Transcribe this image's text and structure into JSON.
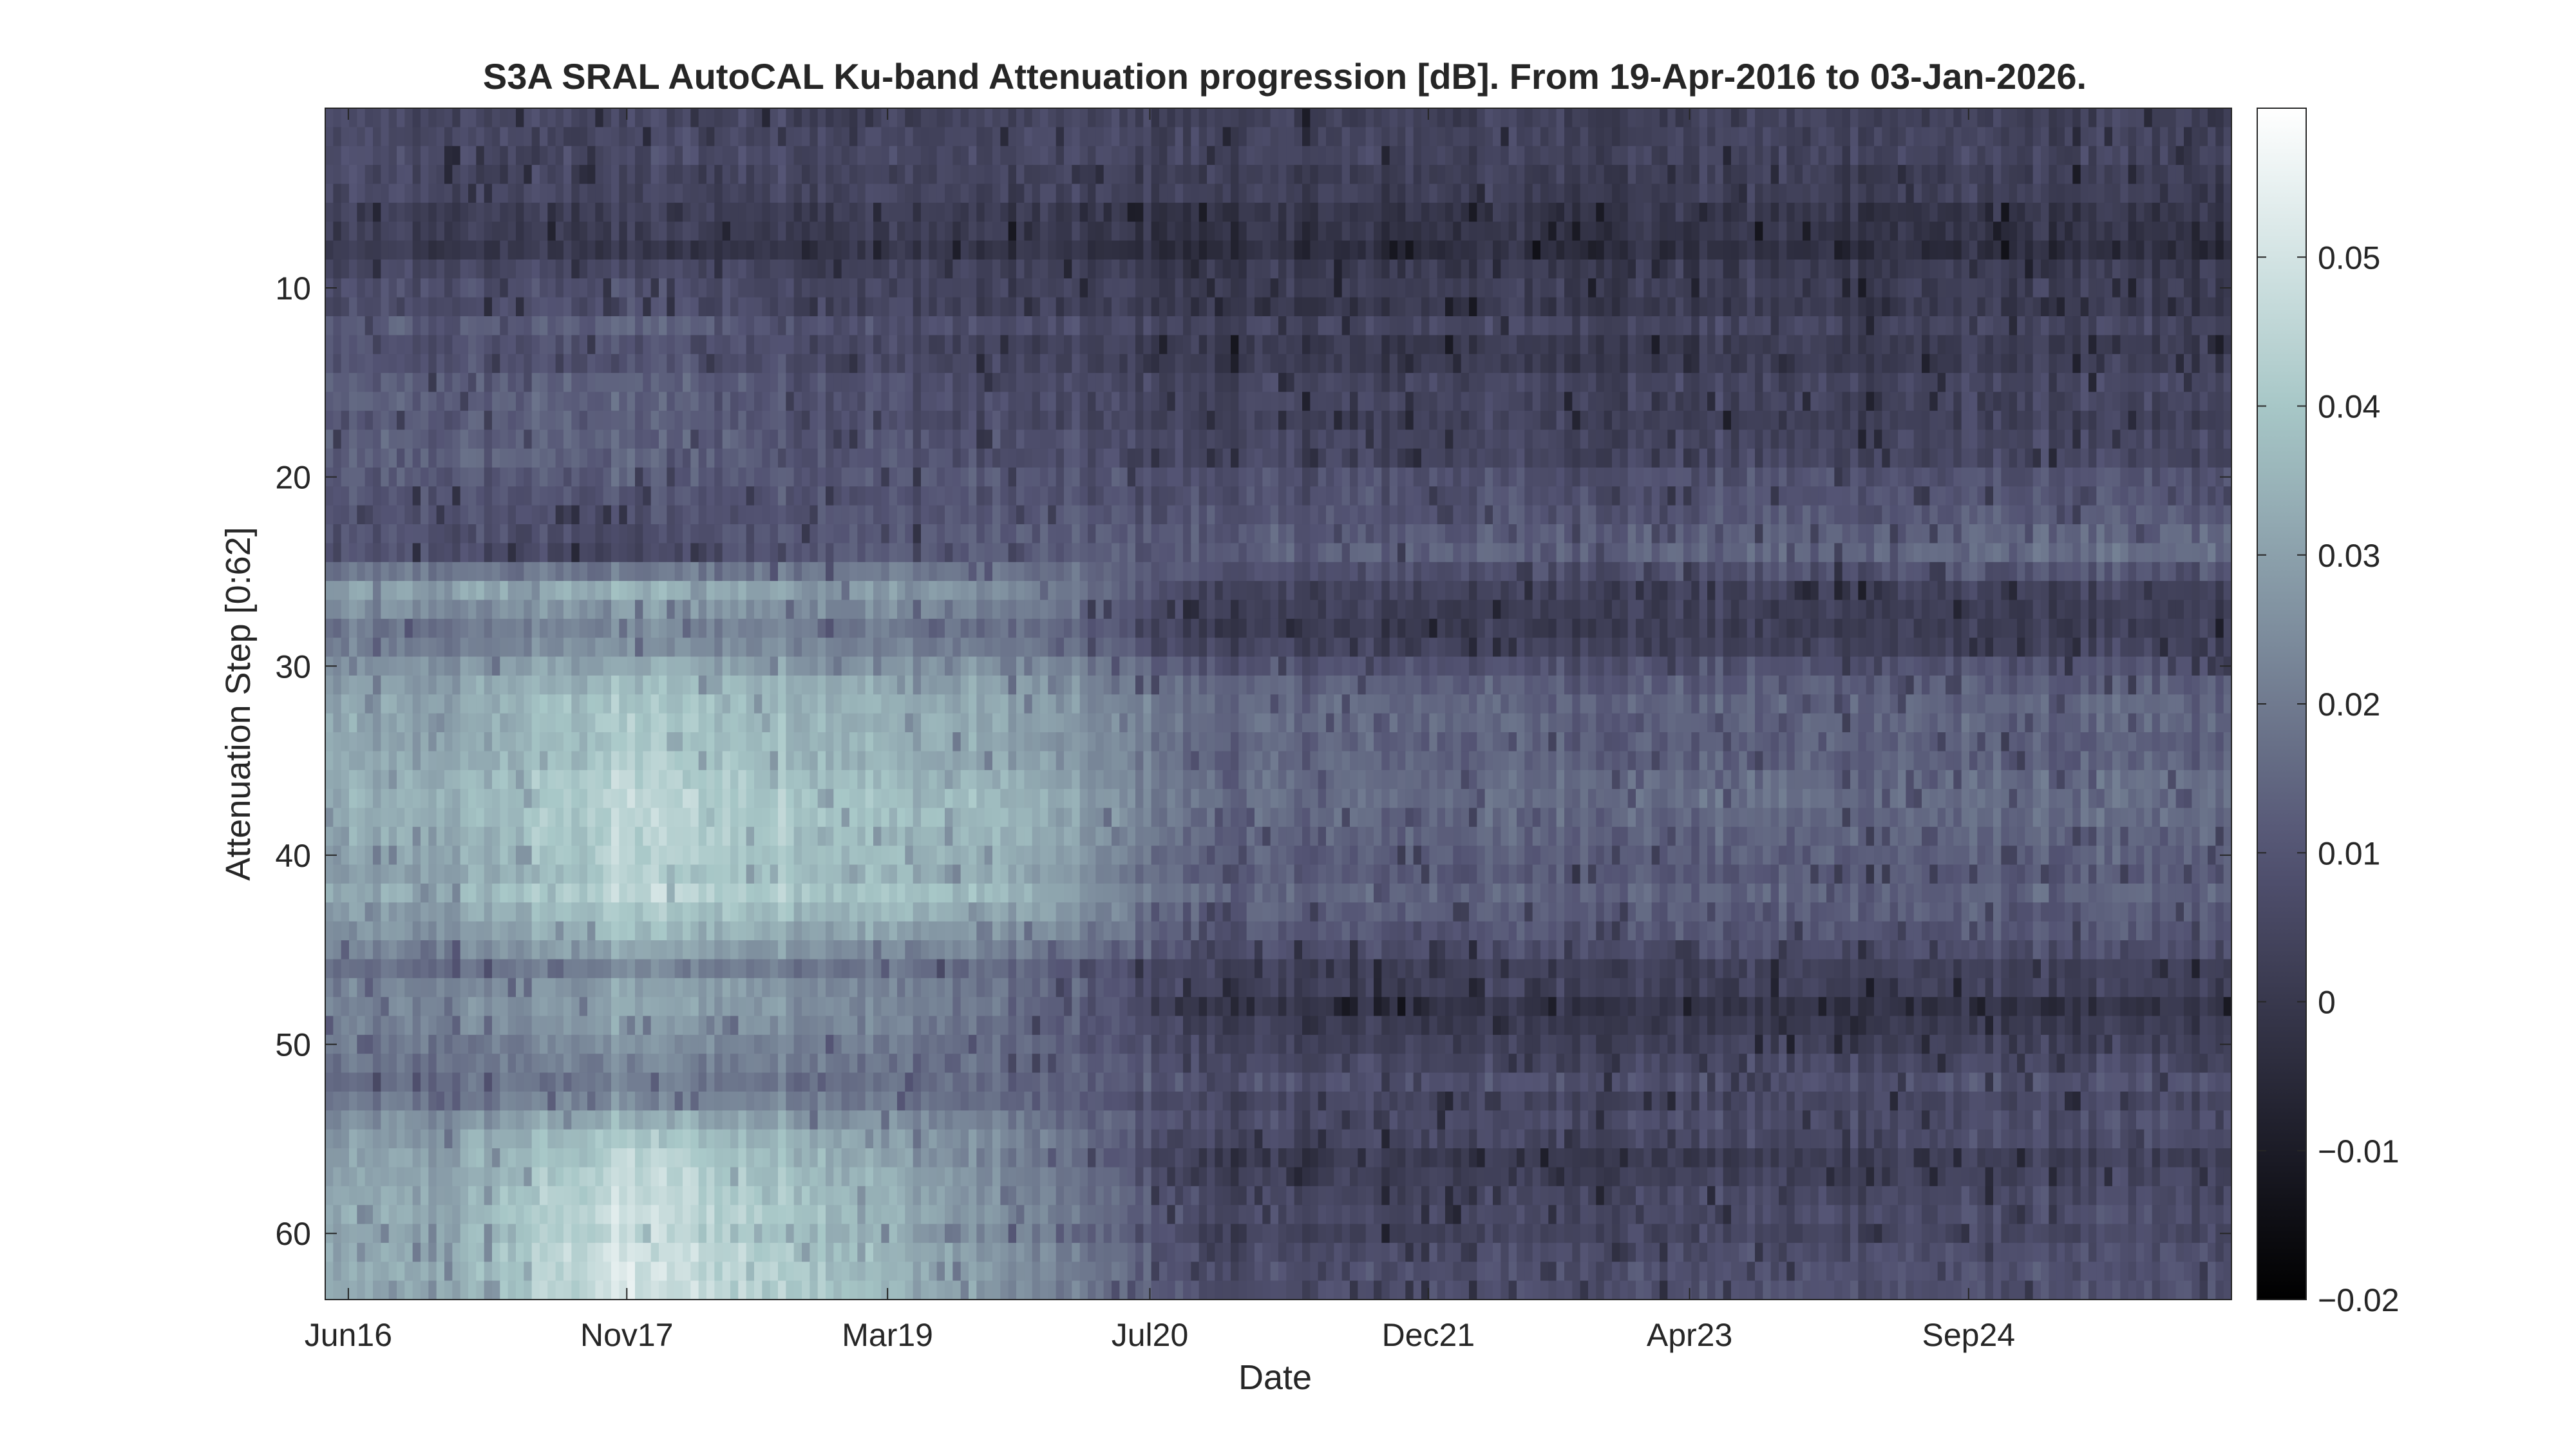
{
  "chart_data": {
    "type": "heatmap",
    "title": "S3A SRAL AutoCAL Ku-band Attenuation progression [dB]. From 19-Apr-2016 to 03-Jan-2026.",
    "xlabel": "Date",
    "ylabel": "Attenuation Step [0:62]",
    "x_range": [
      "2016-04-19",
      "2026-01-03"
    ],
    "x_ticks": [
      {
        "label": "Jun16",
        "date": "2016-06-01"
      },
      {
        "label": "Nov17",
        "date": "2017-11-01"
      },
      {
        "label": "Mar19",
        "date": "2019-03-01"
      },
      {
        "label": "Jul20",
        "date": "2020-07-01"
      },
      {
        "label": "Dec21",
        "date": "2021-12-01"
      },
      {
        "label": "Apr23",
        "date": "2023-04-01"
      },
      {
        "label": "Sep24",
        "date": "2024-09-01"
      }
    ],
    "ylim": [
      0.5,
      63.5
    ],
    "y_reversed": true,
    "y_ticks": [
      10,
      20,
      30,
      40,
      50,
      60
    ],
    "colorbar": {
      "limits": [
        -0.02,
        0.06
      ],
      "ticks": [
        -0.02,
        -0.01,
        0,
        0.01,
        0.02,
        0.03,
        0.04,
        0.05
      ],
      "tick_labels": [
        "−0.02",
        "−0.01",
        "0",
        "0.01",
        "0.02",
        "0.03",
        "0.04",
        "0.05"
      ],
      "colormap": "bone",
      "position": "right"
    },
    "grid": false,
    "step_profiles": {
      "description_units": "dB",
      "steps": [
        1,
        8,
        12,
        19,
        20,
        24,
        26,
        28,
        32,
        37,
        42,
        46,
        48,
        52,
        56,
        63
      ],
      "period_mid_dates": [
        "2016-11-01",
        "2017-11-01",
        "2018-11-01",
        "2019-11-01",
        "2020-11-01",
        "2021-11-01",
        "2022-11-01",
        "2023-11-01",
        "2024-11-01",
        "2025-09-01"
      ],
      "values": [
        [
          0.006,
          0.006,
          0.006,
          0.005,
          0.004,
          0.004,
          0.004,
          0.004,
          0.004,
          0.004
        ],
        [
          0.002,
          0.002,
          0.002,
          0.001,
          -0.002,
          -0.001,
          -0.001,
          -0.001,
          -0.001,
          -0.002
        ],
        [
          0.01,
          0.012,
          0.008,
          0.005,
          0.002,
          0.003,
          0.003,
          0.003,
          0.003,
          0.003
        ],
        [
          0.012,
          0.014,
          0.01,
          0.007,
          0.004,
          0.004,
          0.004,
          0.004,
          0.004,
          0.004
        ],
        [
          0.012,
          0.014,
          0.012,
          0.011,
          0.01,
          0.01,
          0.01,
          0.01,
          0.01,
          0.01
        ],
        [
          0.008,
          0.004,
          0.012,
          0.012,
          0.012,
          0.013,
          0.014,
          0.015,
          0.016,
          0.016
        ],
        [
          0.03,
          0.035,
          0.03,
          0.026,
          0.004,
          0.005,
          0.004,
          0.004,
          0.004,
          0.004
        ],
        [
          0.02,
          0.025,
          0.022,
          0.018,
          0.002,
          0.002,
          0.003,
          0.003,
          0.003,
          0.003
        ],
        [
          0.03,
          0.04,
          0.035,
          0.03,
          0.016,
          0.015,
          0.014,
          0.014,
          0.014,
          0.014
        ],
        [
          0.032,
          0.044,
          0.038,
          0.033,
          0.015,
          0.015,
          0.015,
          0.015,
          0.015,
          0.015
        ],
        [
          0.03,
          0.045,
          0.04,
          0.034,
          0.013,
          0.013,
          0.013,
          0.013,
          0.013,
          0.013
        ],
        [
          0.018,
          0.026,
          0.022,
          0.016,
          0.005,
          0.005,
          0.005,
          0.005,
          0.005,
          0.005
        ],
        [
          0.022,
          0.032,
          0.026,
          0.016,
          -0.002,
          -0.002,
          -0.001,
          -0.002,
          -0.002,
          -0.002
        ],
        [
          0.016,
          0.02,
          0.018,
          0.014,
          0.008,
          0.008,
          0.008,
          0.008,
          0.008,
          0.008
        ],
        [
          0.03,
          0.046,
          0.036,
          0.022,
          0.002,
          0.002,
          0.003,
          0.003,
          0.004,
          0.004
        ],
        [
          0.03,
          0.05,
          0.04,
          0.024,
          0.006,
          0.007,
          0.008,
          0.008,
          0.008,
          0.008
        ]
      ]
    }
  }
}
